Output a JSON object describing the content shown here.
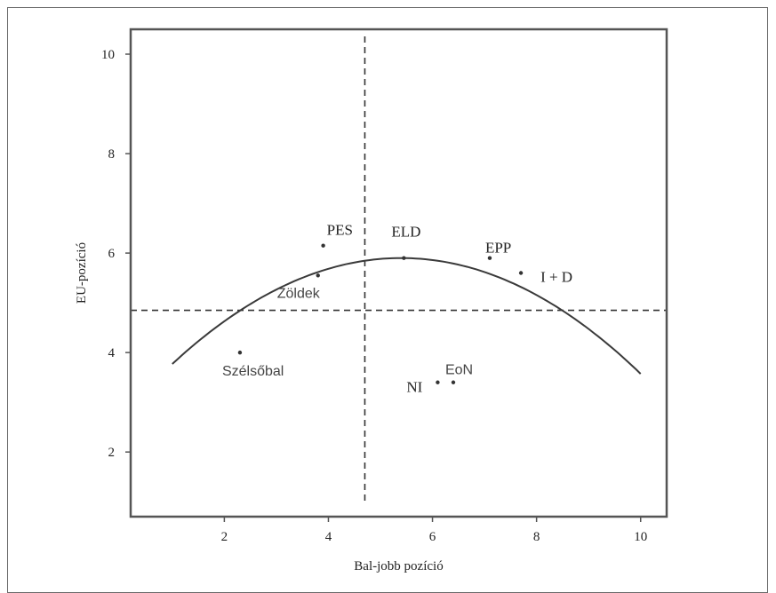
{
  "chart_data": {
    "type": "scatter",
    "title": "",
    "xlabel": "Bal-jobb pozíció",
    "ylabel": "EU-pozíció",
    "xlim": [
      0.2,
      10.5
    ],
    "ylim": [
      0.7,
      10.5
    ],
    "xticks": [
      2,
      4,
      6,
      8,
      10
    ],
    "yticks": [
      2,
      4,
      6,
      8,
      10
    ],
    "grid": false,
    "points": [
      {
        "label": "PES",
        "x": 3.9,
        "y": 6.15
      },
      {
        "label": "Zöldek",
        "x": 3.8,
        "y": 5.55
      },
      {
        "label": "ELD",
        "x": 5.45,
        "y": 5.9
      },
      {
        "label": "EPP",
        "x": 7.1,
        "y": 5.9
      },
      {
        "label": "I + D",
        "x": 7.7,
        "y": 5.6
      },
      {
        "label": "Szélsőbal",
        "x": 2.3,
        "y": 4.0
      },
      {
        "label": "NI",
        "x": 6.1,
        "y": 3.4
      },
      {
        "label": "EoN",
        "x": 6.4,
        "y": 3.4
      }
    ],
    "fit_curve": {
      "type": "quadratic",
      "x_range": [
        1.0,
        10.0
      ],
      "vertex_x": 5.4,
      "vertex_y": 5.9,
      "a": -0.11
    },
    "reference_lines": {
      "vertical_x": 4.7,
      "horizontal_y": 4.85
    }
  }
}
